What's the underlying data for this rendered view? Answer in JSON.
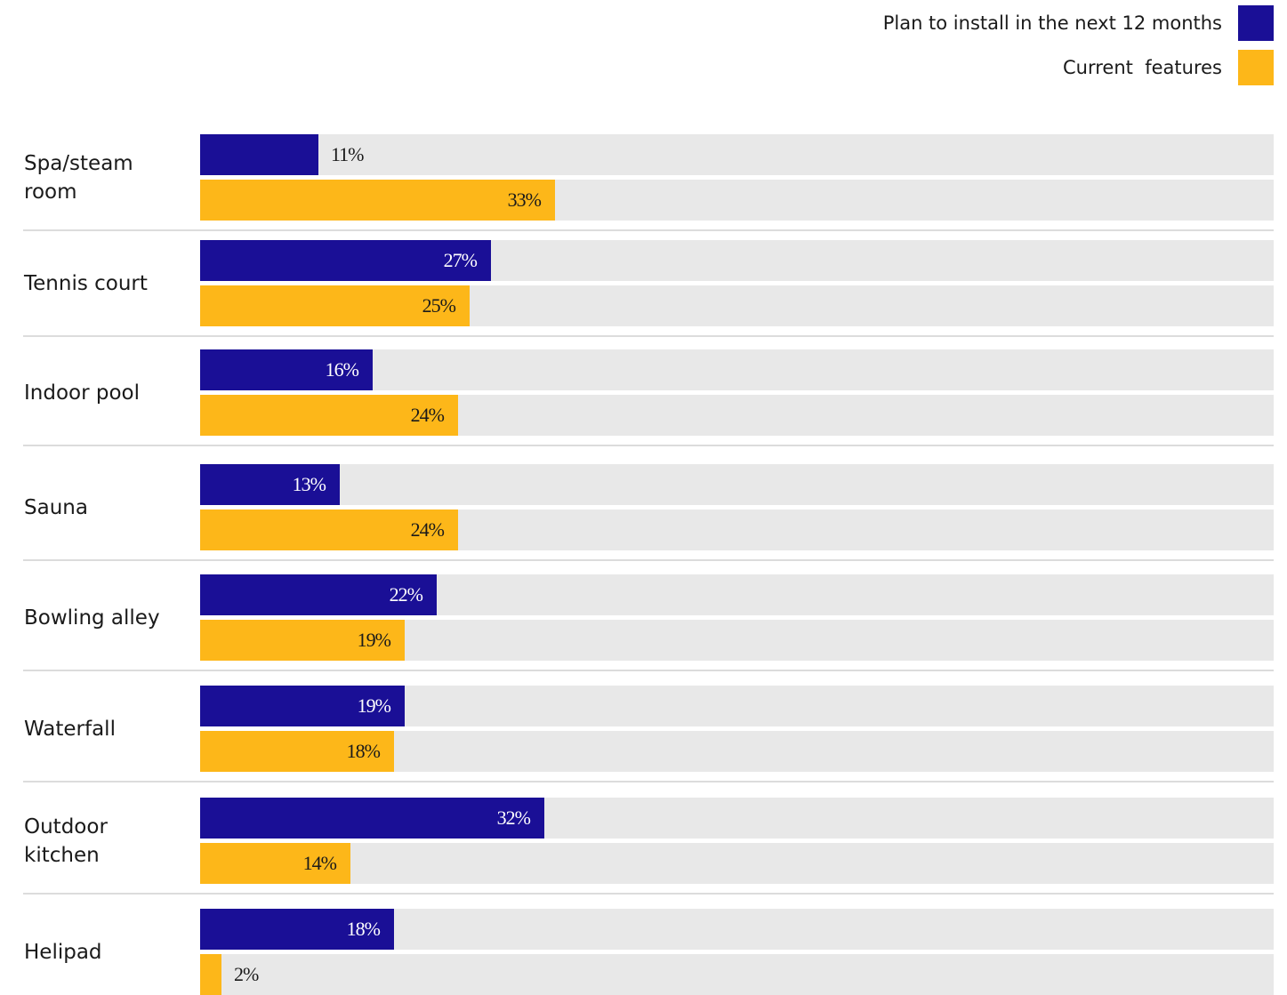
{
  "legend": {
    "plan_label": "Plan to install in the next 12 months",
    "current_label": "Current  features"
  },
  "colors": {
    "plan": "#1a0f96",
    "current": "#fdb719",
    "track": "#e8e8e8"
  },
  "chart_data": {
    "type": "bar",
    "orientation": "horizontal",
    "categories": [
      "Spa/steam room",
      "Tennis court",
      "Indoor pool",
      "Sauna",
      "Bowling alley",
      "Waterfall",
      "Outdoor kitchen",
      "Helipad"
    ],
    "series": [
      {
        "name": "Plan to install in the next 12 months",
        "values": [
          11,
          27,
          16,
          13,
          22,
          19,
          32,
          18
        ]
      },
      {
        "name": "Current  features",
        "values": [
          33,
          25,
          24,
          24,
          19,
          18,
          14,
          2
        ]
      }
    ],
    "value_labels": {
      "plan": [
        "11%",
        "27%",
        "16%",
        "13%",
        "22%",
        "19%",
        "32%",
        "18%"
      ],
      "current": [
        "33%",
        "25%",
        "24%",
        "24%",
        "19%",
        "18%",
        "14%",
        "2%"
      ]
    },
    "xlim": [
      0,
      100
    ],
    "legend_position": "top-right",
    "grid": false
  }
}
